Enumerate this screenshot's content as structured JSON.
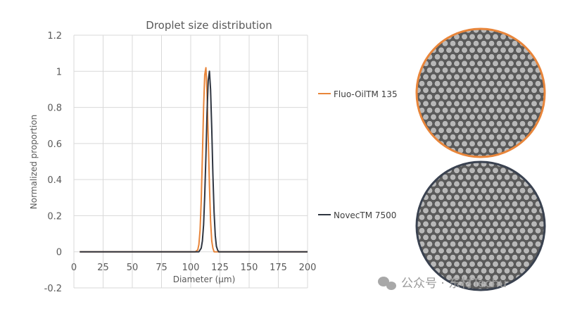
{
  "chart_data": {
    "type": "line",
    "title": "Droplet size distribution",
    "xlabel": "Diameter (µm)",
    "ylabel": "Normalized proportion",
    "xlim": [
      0,
      200
    ],
    "ylim": [
      -0.2,
      1.2
    ],
    "xticks": [
      "0",
      "25",
      "50",
      "75",
      "100",
      "125",
      "150",
      "175",
      "200"
    ],
    "yticks": [
      "1.2",
      "1",
      "0.8",
      "0.6",
      "0.4",
      "0.2",
      "0",
      "-0.2"
    ],
    "grid": true,
    "legend_placement": "right",
    "series": [
      {
        "name": "Fluo-OilTM 135",
        "color": "#e8853a",
        "x": [
          5,
          104,
          106,
          107,
          108,
          109,
          110,
          111,
          112,
          113,
          114,
          115,
          116,
          117,
          118,
          119,
          120,
          200
        ],
        "y": [
          0,
          0,
          0.01,
          0.04,
          0.12,
          0.28,
          0.53,
          0.8,
          0.98,
          1.02,
          0.88,
          0.63,
          0.37,
          0.17,
          0.06,
          0.02,
          0,
          0
        ]
      },
      {
        "name": "NovecTM 7500",
        "color": "#2f3540",
        "x": [
          5,
          107,
          109,
          110,
          111,
          112,
          113,
          114,
          115,
          116,
          117,
          118,
          119,
          120,
          121,
          122,
          123,
          124,
          200
        ],
        "y": [
          0,
          0,
          0.02,
          0.06,
          0.15,
          0.31,
          0.53,
          0.77,
          0.95,
          1.0,
          0.9,
          0.68,
          0.43,
          0.22,
          0.09,
          0.03,
          0.01,
          0,
          0
        ]
      }
    ]
  },
  "images": {
    "top_border_color": "#e8853a",
    "bottom_border_color": "#3a4250"
  },
  "watermark": "公众号 · 东材Techu"
}
